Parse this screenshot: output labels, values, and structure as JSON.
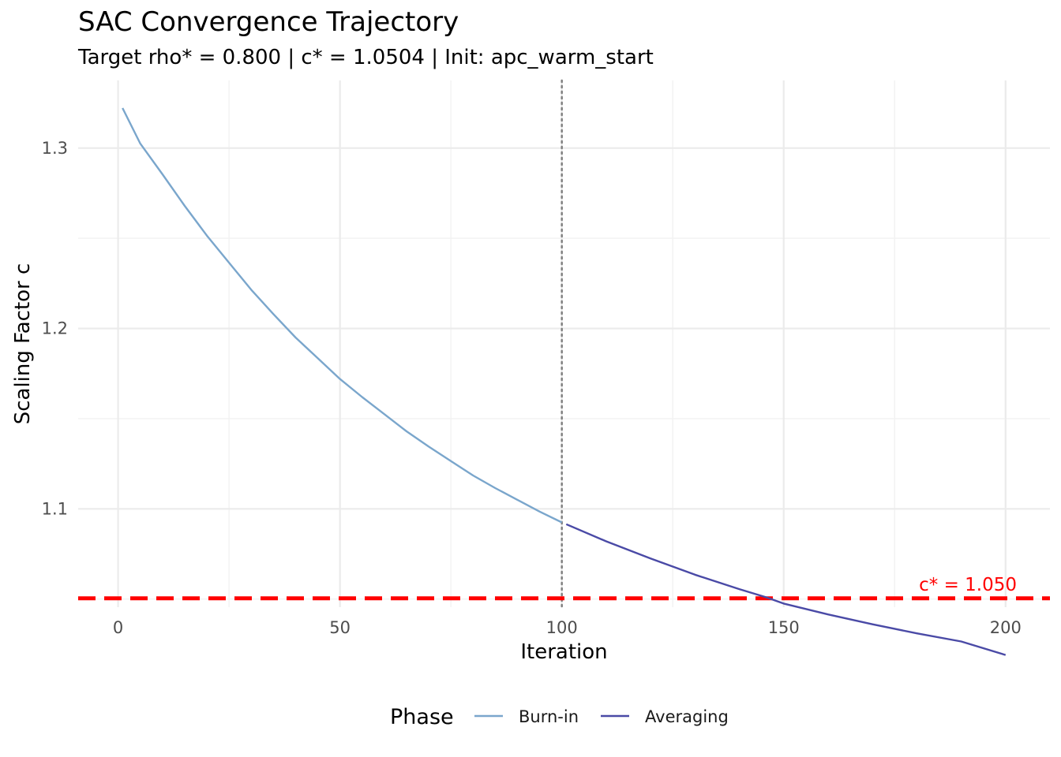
{
  "chart_data": {
    "type": "line",
    "title": "SAC Convergence Trajectory",
    "subtitle": "Target rho* = 0.800 | c* = 1.0504 | Init: apc_warm_start",
    "xlabel": "Iteration",
    "ylabel": "Scaling Factor c",
    "xlim": [
      -9,
      210
    ],
    "ylim": [
      1.0455,
      1.3375
    ],
    "x_ticks": [
      0,
      50,
      100,
      150,
      200
    ],
    "x_tick_labels": [
      "0",
      "50",
      "100",
      "150",
      "200"
    ],
    "y_ticks": [
      1.1,
      1.2,
      1.3
    ],
    "y_tick_labels": [
      "1.1",
      "1.2",
      "1.3"
    ],
    "grid": true,
    "legend": {
      "title": "Phase",
      "position": "bottom"
    },
    "series": [
      {
        "name": "Burn-in",
        "color": "#7AA6CC",
        "x": [
          1,
          5,
          10,
          15,
          20,
          25,
          30,
          35,
          40,
          45,
          50,
          55,
          60,
          65,
          70,
          75,
          80,
          85,
          90,
          95,
          100
        ],
        "y": [
          1.3222,
          1.3025,
          1.2855,
          1.268,
          1.2515,
          1.2365,
          1.2215,
          1.208,
          1.195,
          1.1835,
          1.172,
          1.162,
          1.1525,
          1.143,
          1.1345,
          1.1265,
          1.1185,
          1.1115,
          1.105,
          1.0985,
          1.0925
        ]
      },
      {
        "name": "Averaging",
        "color": "#4A4AA6",
        "x": [
          101,
          110,
          120,
          130,
          140,
          146,
          150,
          160,
          170,
          180,
          190,
          200
        ],
        "y": [
          1.0915,
          1.082,
          1.0725,
          1.0635,
          1.0555,
          1.051,
          1.0475,
          1.0415,
          1.036,
          1.031,
          1.0265,
          1.019
        ]
      }
    ],
    "reference_line": {
      "y": 1.0504,
      "label": "c* = 1.050",
      "color": "#FF0000",
      "style": "dashed"
    },
    "vertical_line": {
      "x": 100,
      "color": "#808080",
      "style": "dotted"
    }
  }
}
